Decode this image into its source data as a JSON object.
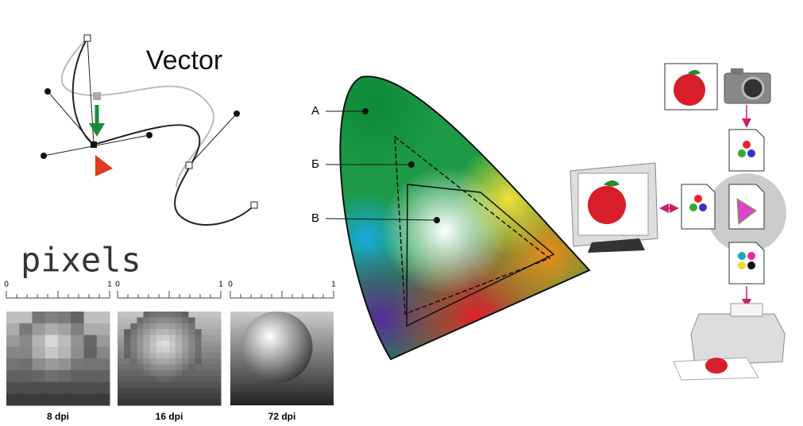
{
  "vector": {
    "title": "Vector"
  },
  "pixels": {
    "title": "pixels",
    "panels": [
      {
        "ruler_start": "0",
        "ruler_end": "1",
        "label": "8 dpi"
      },
      {
        "ruler_start": "0",
        "ruler_end": "1",
        "label": "16 dpi"
      },
      {
        "ruler_start": "0",
        "ruler_end": "1",
        "label": "72 dpi"
      }
    ]
  },
  "gamut": {
    "labels": [
      "А",
      "Б",
      "В"
    ]
  }
}
